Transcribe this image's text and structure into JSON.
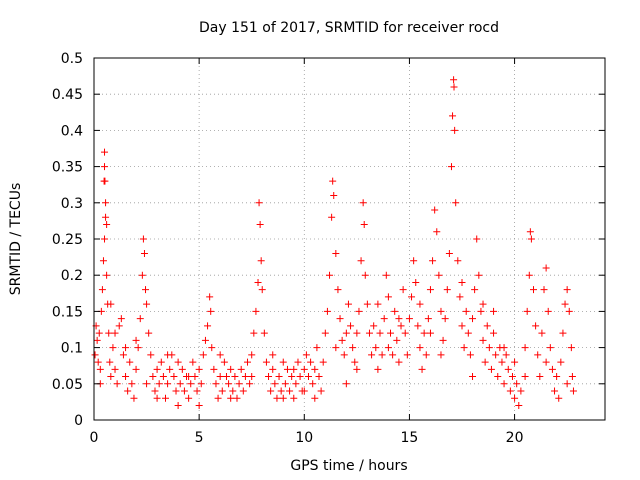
{
  "chart_data": {
    "type": "scatter",
    "title": "Day 151 of 2017, SRMTID for receiver rocd",
    "xlabel": "GPS time / hours",
    "ylabel": "SRMTID / TECUs",
    "xlim": [
      0,
      24.3
    ],
    "ylim": [
      0,
      0.5
    ],
    "grid": true,
    "marker": "+",
    "color": "#ff0000",
    "x_ticks": [
      {
        "value": 0,
        "label": "0"
      },
      {
        "value": 5,
        "label": "5"
      },
      {
        "value": 10,
        "label": "10"
      },
      {
        "value": 15,
        "label": "15"
      },
      {
        "value": 20,
        "label": "20"
      }
    ],
    "y_ticks": [
      {
        "value": 0,
        "label": "0"
      },
      {
        "value": 0.05,
        "label": "0.05"
      },
      {
        "value": 0.1,
        "label": "0.1"
      },
      {
        "value": 0.15,
        "label": "0.15"
      },
      {
        "value": 0.2,
        "label": "0.2"
      },
      {
        "value": 0.25,
        "label": "0.25"
      },
      {
        "value": 0.3,
        "label": "0.3"
      },
      {
        "value": 0.35,
        "label": "0.35"
      },
      {
        "value": 0.4,
        "label": "0.4"
      },
      {
        "value": 0.45,
        "label": "0.45"
      },
      {
        "value": 0.5,
        "label": "0.5"
      }
    ],
    "series": [
      {
        "name": "SRMTID",
        "points": [
          [
            0.05,
            0.09
          ],
          [
            0.1,
            0.13
          ],
          [
            0.15,
            0.11
          ],
          [
            0.2,
            0.08
          ],
          [
            0.25,
            0.12
          ],
          [
            0.3,
            0.07
          ],
          [
            0.35,
            0.15
          ],
          [
            0.4,
            0.18
          ],
          [
            0.45,
            0.22
          ],
          [
            0.5,
            0.25
          ],
          [
            0.5,
            0.37
          ],
          [
            0.5,
            0.35
          ],
          [
            0.48,
            0.33
          ],
          [
            0.52,
            0.33
          ],
          [
            0.55,
            0.3
          ],
          [
            0.55,
            0.28
          ],
          [
            0.6,
            0.27
          ],
          [
            0.6,
            0.2
          ],
          [
            0.65,
            0.16
          ],
          [
            0.7,
            0.12
          ],
          [
            0.75,
            0.08
          ],
          [
            0.8,
            0.06
          ],
          [
            0.9,
            0.1
          ],
          [
            1.0,
            0.07
          ],
          [
            1.1,
            0.05
          ],
          [
            1.2,
            0.13
          ],
          [
            1.3,
            0.14
          ],
          [
            1.4,
            0.09
          ],
          [
            1.5,
            0.06
          ],
          [
            1.6,
            0.04
          ],
          [
            1.7,
            0.08
          ],
          [
            1.8,
            0.05
          ],
          [
            1.9,
            0.03
          ],
          [
            2.0,
            0.07
          ],
          [
            2.1,
            0.1
          ],
          [
            2.2,
            0.14
          ],
          [
            2.3,
            0.2
          ],
          [
            2.35,
            0.25
          ],
          [
            2.4,
            0.23
          ],
          [
            2.45,
            0.18
          ],
          [
            2.5,
            0.16
          ],
          [
            2.6,
            0.12
          ],
          [
            2.7,
            0.09
          ],
          [
            2.8,
            0.06
          ],
          [
            2.9,
            0.04
          ],
          [
            3.0,
            0.07
          ],
          [
            3.1,
            0.05
          ],
          [
            3.2,
            0.08
          ],
          [
            3.3,
            0.06
          ],
          [
            3.4,
            0.03
          ],
          [
            3.5,
            0.05
          ],
          [
            3.6,
            0.07
          ],
          [
            3.7,
            0.09
          ],
          [
            3.8,
            0.06
          ],
          [
            3.9,
            0.04
          ],
          [
            4.0,
            0.02
          ],
          [
            4.1,
            0.05
          ],
          [
            4.2,
            0.07
          ],
          [
            4.3,
            0.04
          ],
          [
            4.4,
            0.06
          ],
          [
            4.5,
            0.03
          ],
          [
            4.6,
            0.05
          ],
          [
            4.7,
            0.08
          ],
          [
            4.8,
            0.06
          ],
          [
            4.9,
            0.04
          ],
          [
            5.0,
            0.07
          ],
          [
            5.1,
            0.05
          ],
          [
            5.2,
            0.09
          ],
          [
            5.3,
            0.11
          ],
          [
            5.4,
            0.13
          ],
          [
            5.5,
            0.17
          ],
          [
            5.55,
            0.15
          ],
          [
            5.6,
            0.1
          ],
          [
            5.7,
            0.07
          ],
          [
            5.8,
            0.05
          ],
          [
            5.9,
            0.03
          ],
          [
            6.0,
            0.06
          ],
          [
            6.1,
            0.04
          ],
          [
            6.2,
            0.08
          ],
          [
            6.3,
            0.06
          ],
          [
            6.4,
            0.05
          ],
          [
            6.5,
            0.07
          ],
          [
            6.6,
            0.04
          ],
          [
            6.7,
            0.06
          ],
          [
            6.8,
            0.03
          ],
          [
            6.9,
            0.05
          ],
          [
            7.0,
            0.07
          ],
          [
            7.1,
            0.04
          ],
          [
            7.2,
            0.06
          ],
          [
            7.3,
            0.08
          ],
          [
            7.4,
            0.05
          ],
          [
            7.5,
            0.09
          ],
          [
            7.6,
            0.12
          ],
          [
            7.7,
            0.15
          ],
          [
            7.8,
            0.19
          ],
          [
            7.85,
            0.3
          ],
          [
            7.9,
            0.27
          ],
          [
            7.95,
            0.22
          ],
          [
            8.0,
            0.18
          ],
          [
            8.1,
            0.12
          ],
          [
            8.2,
            0.08
          ],
          [
            8.3,
            0.06
          ],
          [
            8.4,
            0.04
          ],
          [
            8.5,
            0.07
          ],
          [
            8.6,
            0.05
          ],
          [
            8.7,
            0.03
          ],
          [
            8.8,
            0.06
          ],
          [
            8.9,
            0.04
          ],
          [
            9.0,
            0.08
          ],
          [
            9.1,
            0.05
          ],
          [
            9.2,
            0.07
          ],
          [
            9.3,
            0.04
          ],
          [
            9.4,
            0.06
          ],
          [
            9.5,
            0.03
          ],
          [
            9.6,
            0.05
          ],
          [
            9.7,
            0.08
          ],
          [
            9.8,
            0.06
          ],
          [
            9.9,
            0.04
          ],
          [
            10.0,
            0.07
          ],
          [
            10.1,
            0.09
          ],
          [
            10.2,
            0.06
          ],
          [
            10.3,
            0.08
          ],
          [
            10.4,
            0.05
          ],
          [
            10.5,
            0.07
          ],
          [
            10.6,
            0.1
          ],
          [
            10.7,
            0.06
          ],
          [
            10.8,
            0.04
          ],
          [
            10.9,
            0.08
          ],
          [
            11.0,
            0.12
          ],
          [
            11.1,
            0.15
          ],
          [
            11.2,
            0.2
          ],
          [
            11.3,
            0.28
          ],
          [
            11.35,
            0.33
          ],
          [
            11.4,
            0.31
          ],
          [
            11.5,
            0.23
          ],
          [
            11.6,
            0.18
          ],
          [
            11.7,
            0.14
          ],
          [
            11.8,
            0.11
          ],
          [
            11.9,
            0.09
          ],
          [
            12.0,
            0.12
          ],
          [
            12.1,
            0.16
          ],
          [
            12.2,
            0.13
          ],
          [
            12.3,
            0.1
          ],
          [
            12.4,
            0.08
          ],
          [
            12.5,
            0.12
          ],
          [
            12.6,
            0.15
          ],
          [
            12.7,
            0.22
          ],
          [
            12.8,
            0.3
          ],
          [
            12.85,
            0.27
          ],
          [
            12.9,
            0.2
          ],
          [
            13.0,
            0.16
          ],
          [
            13.1,
            0.12
          ],
          [
            13.2,
            0.09
          ],
          [
            13.3,
            0.13
          ],
          [
            13.4,
            0.1
          ],
          [
            13.5,
            0.16
          ],
          [
            13.6,
            0.12
          ],
          [
            13.7,
            0.09
          ],
          [
            13.8,
            0.14
          ],
          [
            13.9,
            0.2
          ],
          [
            14.0,
            0.17
          ],
          [
            14.1,
            0.12
          ],
          [
            14.2,
            0.09
          ],
          [
            14.3,
            0.15
          ],
          [
            14.4,
            0.11
          ],
          [
            14.5,
            0.08
          ],
          [
            14.6,
            0.13
          ],
          [
            14.7,
            0.18
          ],
          [
            14.8,
            0.12
          ],
          [
            14.9,
            0.09
          ],
          [
            15.0,
            0.14
          ],
          [
            15.1,
            0.17
          ],
          [
            15.2,
            0.22
          ],
          [
            15.3,
            0.19
          ],
          [
            15.4,
            0.13
          ],
          [
            15.5,
            0.1
          ],
          [
            15.6,
            0.07
          ],
          [
            15.7,
            0.12
          ],
          [
            15.8,
            0.09
          ],
          [
            15.9,
            0.14
          ],
          [
            16.0,
            0.18
          ],
          [
            16.1,
            0.22
          ],
          [
            16.2,
            0.29
          ],
          [
            16.3,
            0.26
          ],
          [
            16.4,
            0.2
          ],
          [
            16.5,
            0.15
          ],
          [
            16.6,
            0.11
          ],
          [
            16.7,
            0.14
          ],
          [
            16.8,
            0.18
          ],
          [
            16.9,
            0.23
          ],
          [
            17.0,
            0.35
          ],
          [
            17.05,
            0.42
          ],
          [
            17.1,
            0.47
          ],
          [
            17.12,
            0.46
          ],
          [
            17.15,
            0.4
          ],
          [
            17.2,
            0.3
          ],
          [
            17.3,
            0.22
          ],
          [
            17.4,
            0.17
          ],
          [
            17.5,
            0.13
          ],
          [
            17.6,
            0.1
          ],
          [
            17.7,
            0.15
          ],
          [
            17.8,
            0.12
          ],
          [
            17.9,
            0.09
          ],
          [
            18.0,
            0.14
          ],
          [
            18.1,
            0.18
          ],
          [
            18.2,
            0.25
          ],
          [
            18.3,
            0.2
          ],
          [
            18.4,
            0.15
          ],
          [
            18.5,
            0.11
          ],
          [
            18.6,
            0.08
          ],
          [
            18.7,
            0.13
          ],
          [
            18.8,
            0.1
          ],
          [
            18.9,
            0.07
          ],
          [
            19.0,
            0.12
          ],
          [
            19.1,
            0.09
          ],
          [
            19.2,
            0.06
          ],
          [
            19.3,
            0.1
          ],
          [
            19.4,
            0.08
          ],
          [
            19.5,
            0.05
          ],
          [
            19.6,
            0.09
          ],
          [
            19.7,
            0.07
          ],
          [
            19.8,
            0.04
          ],
          [
            19.9,
            0.06
          ],
          [
            20.0,
            0.03
          ],
          [
            20.1,
            0.05
          ],
          [
            20.2,
            0.02
          ],
          [
            20.3,
            0.04
          ],
          [
            20.5,
            0.1
          ],
          [
            20.6,
            0.15
          ],
          [
            20.7,
            0.2
          ],
          [
            20.75,
            0.26
          ],
          [
            20.8,
            0.25
          ],
          [
            20.9,
            0.18
          ],
          [
            21.0,
            0.13
          ],
          [
            21.1,
            0.09
          ],
          [
            21.2,
            0.06
          ],
          [
            21.3,
            0.12
          ],
          [
            21.4,
            0.18
          ],
          [
            21.5,
            0.21
          ],
          [
            21.6,
            0.15
          ],
          [
            21.7,
            0.1
          ],
          [
            21.8,
            0.07
          ],
          [
            21.9,
            0.04
          ],
          [
            22.0,
            0.06
          ],
          [
            22.1,
            0.03
          ],
          [
            22.2,
            0.08
          ],
          [
            22.3,
            0.12
          ],
          [
            22.4,
            0.16
          ],
          [
            22.5,
            0.18
          ],
          [
            22.6,
            0.15
          ],
          [
            22.7,
            0.1
          ],
          [
            22.75,
            0.06
          ],
          [
            22.8,
            0.04
          ],
          [
            0.3,
            0.05
          ],
          [
            1.5,
            0.1
          ],
          [
            2.5,
            0.05
          ],
          [
            3.5,
            0.09
          ],
          [
            4.5,
            0.06
          ],
          [
            6.5,
            0.03
          ],
          [
            7.5,
            0.06
          ],
          [
            8.5,
            0.09
          ],
          [
            9.5,
            0.07
          ],
          [
            10.5,
            0.03
          ],
          [
            11.5,
            0.1
          ],
          [
            12.5,
            0.07
          ],
          [
            13.5,
            0.07
          ],
          [
            14.5,
            0.14
          ],
          [
            15.5,
            0.16
          ],
          [
            16.5,
            0.09
          ],
          [
            17.5,
            0.19
          ],
          [
            18.5,
            0.16
          ],
          [
            19.5,
            0.1
          ],
          [
            20.5,
            0.06
          ],
          [
            21.5,
            0.08
          ],
          [
            22.5,
            0.05
          ],
          [
            6.0,
            0.09
          ],
          [
            9.0,
            0.03
          ],
          [
            10.0,
            0.04
          ],
          [
            12.0,
            0.05
          ],
          [
            14.0,
            0.1
          ],
          [
            16.0,
            0.12
          ],
          [
            18.0,
            0.06
          ],
          [
            19.0,
            0.15
          ],
          [
            20.0,
            0.08
          ],
          [
            5.0,
            0.02
          ],
          [
            4.0,
            0.08
          ],
          [
            3.0,
            0.03
          ],
          [
            2.0,
            0.11
          ],
          [
            1.0,
            0.12
          ],
          [
            0.8,
            0.16
          ]
        ]
      }
    ]
  }
}
